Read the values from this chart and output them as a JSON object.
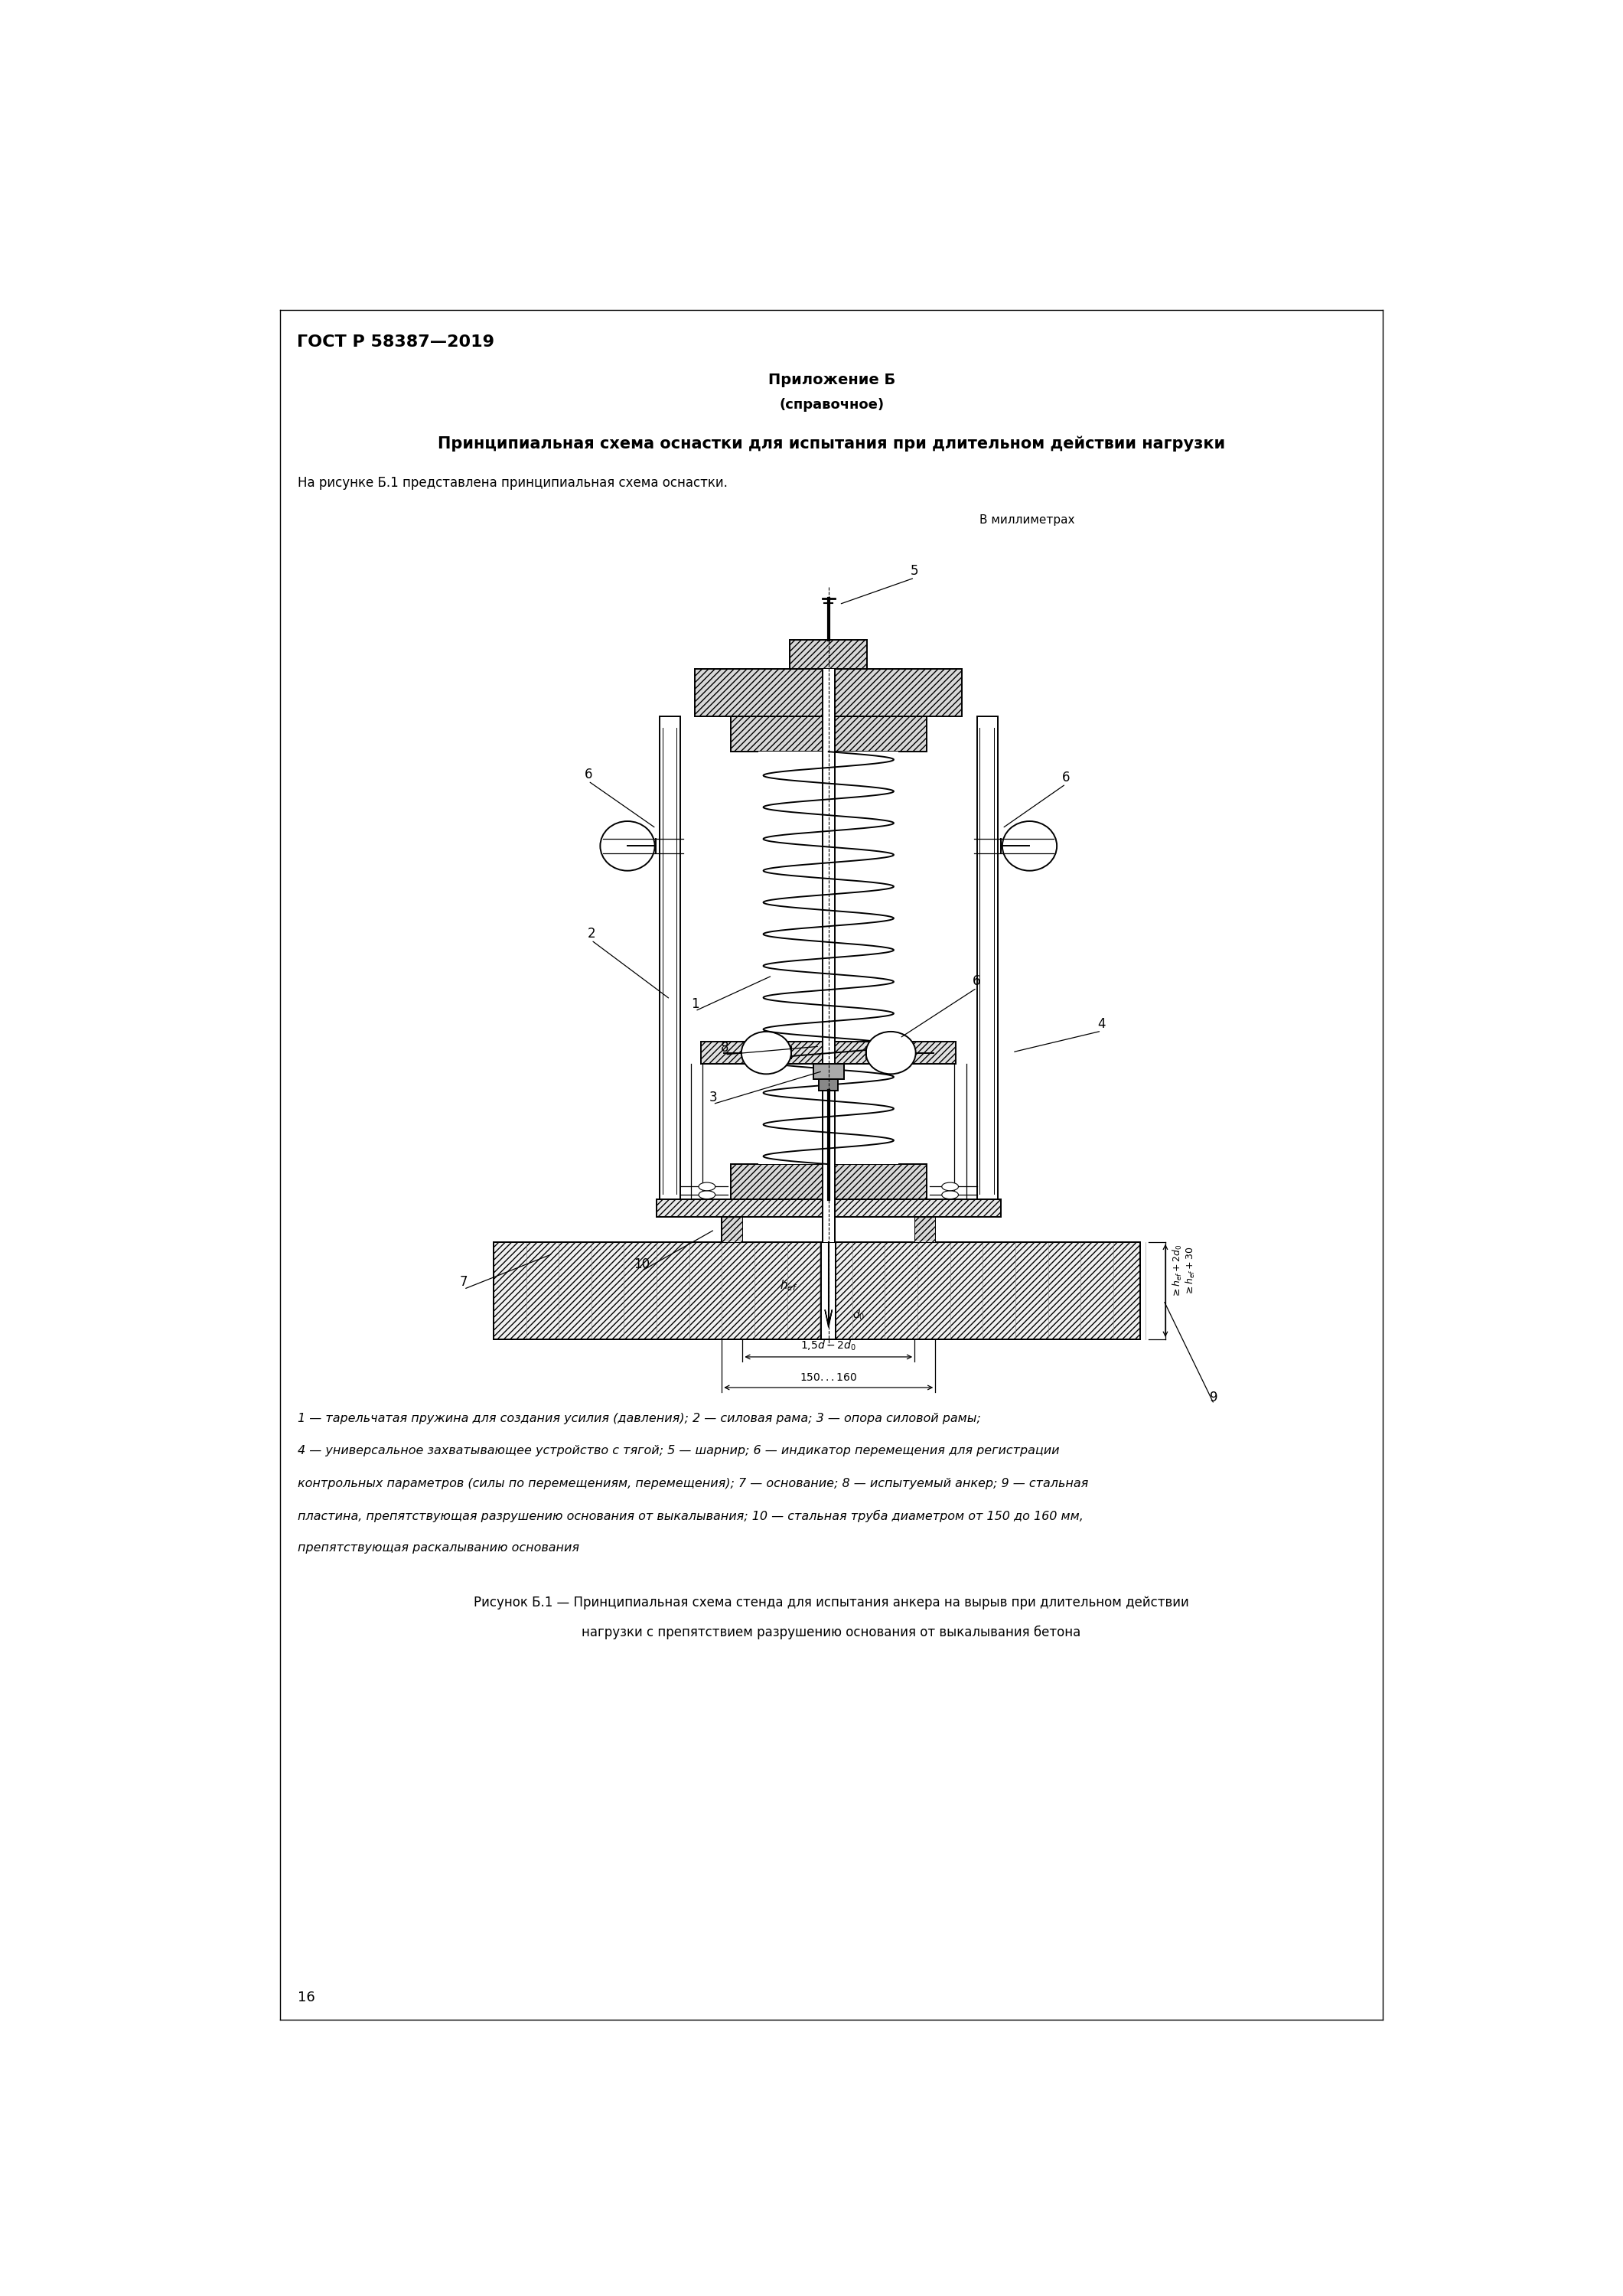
{
  "page_title": "ГОСТ Р 58387—2019",
  "appendix_title": "Приложение Б",
  "appendix_subtitle": "(справочное)",
  "section_title": "Принципиальная схема оснастки для испытания при длительном действии нагрузки",
  "intro_text": "На рисунке Б.1 представлена принципиальная схема оснастки.",
  "units_label": "В миллиметрах",
  "caption_line1": "1 — тарельчатая пружина для создания усилия (давления); 2 — силовая рама; 3 — опора силовой рамы;",
  "caption_line2": "4 — универсальное захватывающее устройство с тягой; 5 — шарнир; 6 — индикатор перемещения для регистрации",
  "caption_line3": "контрольных параметров (силы по перемещениям, перемещения); 7 — основание; 8 — испытуемый анкер; 9 — стальная",
  "caption_line4": "пластина, препятствующая разрушению основания от выкалывания; 10 — стальная труба диаметром от 150 до 160 мм,",
  "caption_line5": "препятствующая раскалыванию основания",
  "figure_caption1": "Рисунок Б.1 — Принципиальная схема стенда для испытания анкера на вырыв при длительном действии",
  "figure_caption2": "нагрузки с препятствием разрушению основания от выкалывания бетона",
  "page_number": "16",
  "bg_color": "#ffffff"
}
